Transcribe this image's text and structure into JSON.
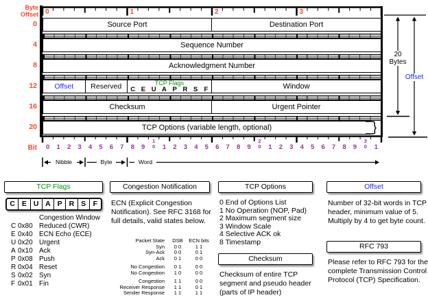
{
  "colors": {
    "red": "#ff4422",
    "purple": "#993399",
    "green": "#009900",
    "blue": "#2222ff"
  },
  "grid": {
    "corner_label": "Byte Offset",
    "byte_offsets": [
      "0",
      "4",
      "8",
      "12",
      "16",
      "20"
    ],
    "top_ruler_numbers": [
      "0",
      "1",
      "2",
      "3"
    ],
    "bit_label": "Bit",
    "bit_labels": [
      "0",
      "1",
      "2",
      "3",
      "4",
      "5",
      "6",
      "7",
      "8",
      "9",
      "10",
      "1",
      "2",
      "3",
      "4",
      "5",
      "6",
      "7",
      "8",
      "9",
      "20",
      "1",
      "2",
      "3",
      "4",
      "5",
      "6",
      "7",
      "8",
      "9",
      "30",
      "1"
    ],
    "unit_labels": {
      "nibble": "Nibble",
      "byte": "Byte",
      "word": "Word"
    },
    "rows": {
      "r0": {
        "left": "Source Port",
        "right": "Destination Port"
      },
      "r4": {
        "full": "Sequence Number"
      },
      "r8": {
        "full": "Acknowledgment Number"
      },
      "r12": {
        "offset": "Offset",
        "reserved": "Reserved",
        "flags_title": "TCP Flags",
        "flag_letters": [
          "C",
          "E",
          "U",
          "A",
          "P",
          "R",
          "S",
          "F"
        ],
        "window": "Window"
      },
      "r16": {
        "left": "Checksum",
        "right": "Urgent Pointer"
      },
      "r20": {
        "full": "TCP Options (variable length, optional)"
      }
    },
    "right_annotations": {
      "bytes": "20 Bytes",
      "offset": "Offset"
    }
  },
  "legend": {
    "flags": {
      "title": "TCP Flags",
      "letters": [
        "C",
        "E",
        "U",
        "A",
        "P",
        "R",
        "S",
        "F"
      ],
      "lines": [
        {
          "flag": "",
          "hex": "",
          "desc": "Congestion Window"
        },
        {
          "flag": "C",
          "hex": "0x80",
          "desc": "Reduced (CWR)"
        },
        {
          "flag": "E",
          "hex": "0x40",
          "desc": "ECN Echo (ECE)"
        },
        {
          "flag": "U",
          "hex": "0x20",
          "desc": "Urgent"
        },
        {
          "flag": "A",
          "hex": "0x10",
          "desc": "Ack"
        },
        {
          "flag": "P",
          "hex": "0x08",
          "desc": "Push"
        },
        {
          "flag": "R",
          "hex": "0x04",
          "desc": "Reset"
        },
        {
          "flag": "S",
          "hex": "0x02",
          "desc": "Syn"
        },
        {
          "flag": "F",
          "hex": "0x01",
          "desc": "Fin"
        }
      ]
    },
    "congestion": {
      "title": "Congestion Notification",
      "body": "ECN (Explicit Congestion Notification).  See RFC 3168 for full details, valid states below.",
      "table": {
        "header": [
          "Packet State",
          "DSB",
          "ECN bits"
        ],
        "groups": [
          [
            [
              "Syn",
              "0 0",
              "1 1"
            ],
            [
              "Syn-Ack",
              "0 0",
              "0 1"
            ],
            [
              "Ack",
              "0 1",
              "0 0"
            ]
          ],
          [
            [
              "No Congestion",
              "0 1",
              "0 0"
            ],
            [
              "No Congestion",
              "1 0",
              "0 0"
            ]
          ],
          [
            [
              "Congestion",
              "1 1",
              "0 0"
            ],
            [
              "Receiver Response",
              "1 1",
              "0 1"
            ],
            [
              "Sender Response",
              "1 1",
              "1 1"
            ]
          ]
        ]
      }
    },
    "options": {
      "title": "TCP Options",
      "items": [
        "0 End of Options List",
        "1 No Operation (NOP, Pad)",
        "2 Maximum segment size",
        "3 Window Scale",
        "4 Selective ACK ok",
        "8 Timestamp"
      ]
    },
    "checksum": {
      "title": "Checksum",
      "body": "Checksum of entire TCP segment and pseudo header (parts of IP header)"
    },
    "offset": {
      "title": "Offset",
      "body": "Number of 32-bit words in TCP header, minimum value of 5.  Multiply by 4 to get byte count."
    },
    "rfc": {
      "title": "RFC 793",
      "body": "Please refer to RFC 793 for the complete Transmission Control Protocol (TCP) Specification."
    }
  }
}
